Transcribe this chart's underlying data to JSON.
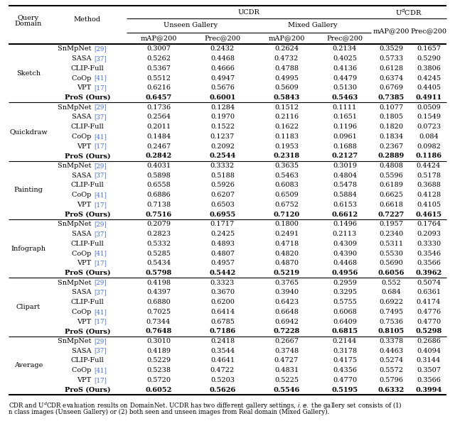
{
  "domains": [
    "Sketch",
    "Quickdraw",
    "Painting",
    "Infograph",
    "Clipart",
    "Average"
  ],
  "methods": [
    "SnMpNet [29]",
    "SASA [37]",
    "CLIP-Full",
    "CoOp [41]",
    "VPT [17]",
    "ProS (Ours)"
  ],
  "data": {
    "Sketch": [
      [
        "0.3007",
        "0.2432",
        "0.2624",
        "0.2134",
        "0.3529",
        "0.1657"
      ],
      [
        "0.5262",
        "0.4468",
        "0.4732",
        "0.4025",
        "0.5733",
        "0.5290"
      ],
      [
        "0.5367",
        "0.4666",
        "0.4788",
        "0.4136",
        "0.6128",
        "0.3806"
      ],
      [
        "0.5512",
        "0.4947",
        "0.4995",
        "0.4479",
        "0.6374",
        "0.4245"
      ],
      [
        "0.6216",
        "0.5676",
        "0.5609",
        "0.5130",
        "0.6769",
        "0.4405"
      ],
      [
        "0.6457",
        "0.6001",
        "0.5843",
        "0.5463",
        "0.7385",
        "0.4911"
      ]
    ],
    "Quickdraw": [
      [
        "0.1736",
        "0.1284",
        "0.1512",
        "0.1111",
        "0.1077",
        "0.0509"
      ],
      [
        "0.2564",
        "0.1970",
        "0.2116",
        "0.1651",
        "0.1805",
        "0.1549"
      ],
      [
        "0.2011",
        "0.1522",
        "0.1622",
        "0.1196",
        "0.1820",
        "0.0723"
      ],
      [
        "0.1484",
        "0.1237",
        "0.1183",
        "0.0961",
        "0.1834",
        "0.084"
      ],
      [
        "0.2467",
        "0.2092",
        "0.1953",
        "0.1688",
        "0.2367",
        "0.0982"
      ],
      [
        "0.2842",
        "0.2544",
        "0.2318",
        "0.2127",
        "0.2889",
        "0.1186"
      ]
    ],
    "Painting": [
      [
        "0.4031",
        "0.3332",
        "0.3635",
        "0.3019",
        "0.4808",
        "0.4424"
      ],
      [
        "0.5898",
        "0.5188",
        "0.5463",
        "0.4804",
        "0.5596",
        "0.5178"
      ],
      [
        "0.6558",
        "0.5926",
        "0.6083",
        "0.5478",
        "0.6189",
        "0.3688"
      ],
      [
        "0.6886",
        "0.6207",
        "0.6509",
        "0.5884",
        "0.6625",
        "0.4128"
      ],
      [
        "0.7138",
        "0.6503",
        "0.6752",
        "0.6153",
        "0.6618",
        "0.4105"
      ],
      [
        "0.7516",
        "0.6955",
        "0.7120",
        "0.6612",
        "0.7227",
        "0.4615"
      ]
    ],
    "Infograph": [
      [
        "0.2079",
        "0.1717",
        "0.1800",
        "0.1496",
        "0.1957",
        "0.1764"
      ],
      [
        "0.2823",
        "0.2425",
        "0.2491",
        "0.2113",
        "0.2340",
        "0.2093"
      ],
      [
        "0.5332",
        "0.4893",
        "0.4718",
        "0.4309",
        "0.5311",
        "0.3330"
      ],
      [
        "0.5285",
        "0.4807",
        "0.4820",
        "0.4390",
        "0.5530",
        "0.3546"
      ],
      [
        "0.5434",
        "0.4957",
        "0.4870",
        "0.4468",
        "0.5690",
        "0.3566"
      ],
      [
        "0.5798",
        "0.5442",
        "0.5219",
        "0.4956",
        "0.6056",
        "0.3962"
      ]
    ],
    "Clipart": [
      [
        "0.4198",
        "0.3323",
        "0.3765",
        "0.2959",
        "0.552",
        "0.5074"
      ],
      [
        "0.4397",
        "0.3670",
        "0.3940",
        "0.3295",
        "0.684",
        "0.6361"
      ],
      [
        "0.6880",
        "0.6200",
        "0.6423",
        "0.5755",
        "0.6922",
        "0.4174"
      ],
      [
        "0.7025",
        "0.6414",
        "0.6648",
        "0.6068",
        "0.7495",
        "0.4776"
      ],
      [
        "0.7344",
        "0.6785",
        "0.6942",
        "0.6409",
        "0.7536",
        "0.4770"
      ],
      [
        "0.7648",
        "0.7186",
        "0.7228",
        "0.6815",
        "0.8105",
        "0.5298"
      ]
    ],
    "Average": [
      [
        "0.3010",
        "0.2418",
        "0.2667",
        "0.2144",
        "0.3378",
        "0.2686"
      ],
      [
        "0.4189",
        "0.3544",
        "0.3748",
        "0.3178",
        "0.4463",
        "0.4094"
      ],
      [
        "0.5229",
        "0.4641",
        "0.4727",
        "0.4175",
        "0.5274",
        "0.3144"
      ],
      [
        "0.5238",
        "0.4722",
        "0.4831",
        "0.4356",
        "0.5572",
        "0.3507"
      ],
      [
        "0.5720",
        "0.5203",
        "0.5225",
        "0.4770",
        "0.5796",
        "0.3566"
      ],
      [
        "0.6052",
        "0.5626",
        "0.5546",
        "0.5195",
        "0.6332",
        "0.3994"
      ]
    ]
  },
  "ref_color": "#4169E1",
  "background": "#ffffff",
  "caption_line1": "CDR and UᵈCDR evaluation results on DomainNet. UCDR has two different gallery settings,   i.e.  the gallery set consists of (1)",
  "caption_line2": "n class images (Unseen Gallery) or (2) both seen and unseen images from Real domain (Mixed Gallery)."
}
